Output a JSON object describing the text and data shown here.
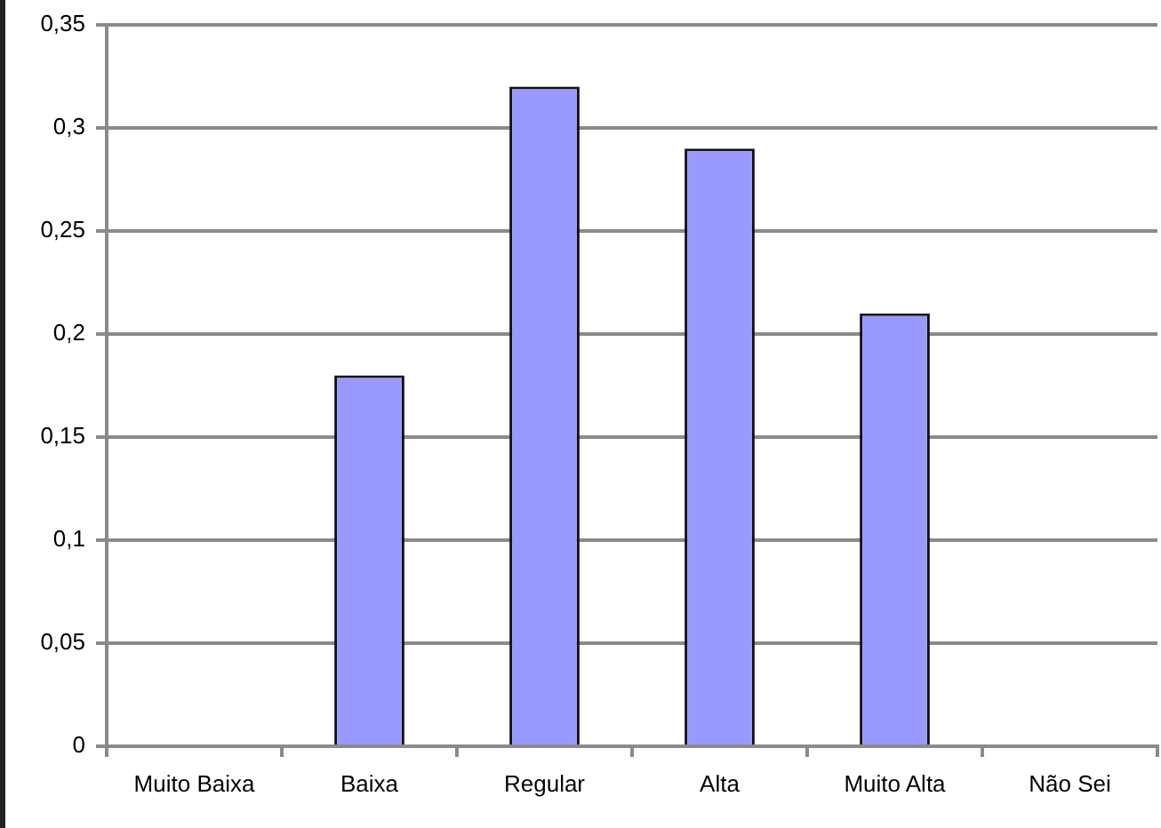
{
  "chart_data": {
    "type": "bar",
    "categories": [
      "Muito Baixa",
      "Baixa",
      "Regular",
      "Alta",
      "Muito Alta",
      "Não Sei"
    ],
    "values": [
      0,
      0.18,
      0.32,
      0.29,
      0.21,
      0
    ],
    "color": "#9999ff",
    "ylim": [
      0,
      0.35
    ],
    "yticks": [
      0,
      {
        "value": 0.05,
        "label": "0,05"
      },
      {
        "value": 0.1,
        "label": "0,1"
      },
      {
        "value": 0.15,
        "label": "0,15"
      },
      {
        "value": 0.2,
        "label": "0,2"
      },
      {
        "value": 0.25,
        "label": "0,25"
      },
      {
        "value": 0.3,
        "label": "0,3"
      },
      {
        "value": 0.35,
        "label": "0,35"
      }
    ],
    "grid": "y"
  }
}
